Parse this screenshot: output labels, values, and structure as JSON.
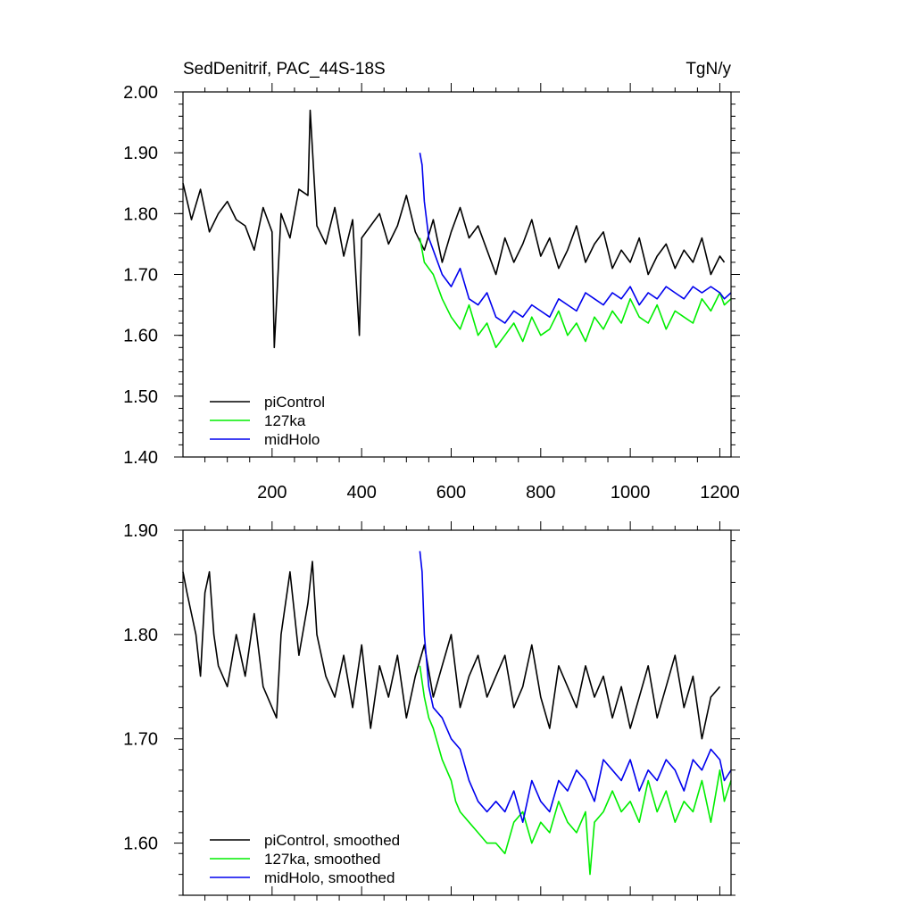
{
  "chart_data": [
    {
      "type": "line",
      "title": "SedDenitrif, PAC_44S-18S",
      "units": "TgN/y",
      "xlabel": "",
      "ylabel": "",
      "xlim": [
        1,
        1225
      ],
      "ylim": [
        1.4,
        2.0
      ],
      "xticks": [
        200,
        400,
        600,
        800,
        1000,
        1200
      ],
      "xtick_labels": [
        "200",
        "400",
        "600",
        "800",
        "1000",
        "1200"
      ],
      "yticks": [
        1.4,
        1.5,
        1.6,
        1.7,
        1.8,
        1.9,
        2.0
      ],
      "ytick_labels": [
        "1.40",
        "1.50",
        "1.60",
        "1.70",
        "1.80",
        "1.90",
        "2.00"
      ],
      "legend_position": "bottom-left",
      "series": [
        {
          "name": "piControl",
          "color": "#000000",
          "x": [
            1,
            20,
            40,
            60,
            80,
            100,
            120,
            140,
            160,
            180,
            200,
            205,
            220,
            240,
            260,
            280,
            285,
            300,
            320,
            340,
            360,
            380,
            395,
            400,
            420,
            440,
            460,
            480,
            500,
            520,
            540,
            560,
            580,
            600,
            620,
            640,
            660,
            680,
            700,
            720,
            740,
            760,
            780,
            800,
            820,
            840,
            860,
            880,
            900,
            920,
            940,
            960,
            980,
            1000,
            1020,
            1040,
            1060,
            1080,
            1100,
            1120,
            1140,
            1160,
            1180,
            1200,
            1210
          ],
          "values": [
            1.85,
            1.79,
            1.84,
            1.77,
            1.8,
            1.82,
            1.79,
            1.78,
            1.74,
            1.81,
            1.77,
            1.58,
            1.8,
            1.76,
            1.84,
            1.83,
            1.97,
            1.78,
            1.75,
            1.81,
            1.73,
            1.79,
            1.6,
            1.76,
            1.78,
            1.8,
            1.75,
            1.78,
            1.83,
            1.77,
            1.74,
            1.79,
            1.72,
            1.77,
            1.81,
            1.76,
            1.78,
            1.74,
            1.7,
            1.76,
            1.72,
            1.75,
            1.79,
            1.73,
            1.76,
            1.71,
            1.74,
            1.78,
            1.72,
            1.75,
            1.77,
            1.71,
            1.74,
            1.72,
            1.76,
            1.7,
            1.73,
            1.75,
            1.71,
            1.74,
            1.72,
            1.76,
            1.7,
            1.73,
            1.72
          ]
        },
        {
          "name": "127ka",
          "color": "#00ee00",
          "x": [
            530,
            540,
            560,
            580,
            600,
            620,
            640,
            660,
            680,
            700,
            720,
            740,
            760,
            780,
            800,
            820,
            840,
            860,
            880,
            900,
            920,
            940,
            960,
            980,
            1000,
            1020,
            1040,
            1060,
            1080,
            1100,
            1120,
            1140,
            1160,
            1180,
            1200,
            1210,
            1225
          ],
          "values": [
            1.76,
            1.72,
            1.7,
            1.66,
            1.63,
            1.61,
            1.65,
            1.6,
            1.62,
            1.58,
            1.6,
            1.62,
            1.59,
            1.63,
            1.6,
            1.61,
            1.64,
            1.6,
            1.62,
            1.59,
            1.63,
            1.61,
            1.64,
            1.62,
            1.66,
            1.63,
            1.62,
            1.65,
            1.61,
            1.64,
            1.63,
            1.62,
            1.66,
            1.64,
            1.67,
            1.65,
            1.66
          ]
        },
        {
          "name": "midHolo",
          "color": "#0000ee",
          "x": [
            530,
            535,
            540,
            550,
            560,
            580,
            600,
            620,
            640,
            660,
            680,
            700,
            720,
            740,
            760,
            780,
            800,
            820,
            840,
            860,
            880,
            900,
            920,
            940,
            960,
            980,
            1000,
            1020,
            1040,
            1060,
            1080,
            1100,
            1120,
            1140,
            1160,
            1180,
            1200,
            1210,
            1225
          ],
          "values": [
            1.9,
            1.88,
            1.82,
            1.76,
            1.74,
            1.7,
            1.68,
            1.71,
            1.66,
            1.65,
            1.67,
            1.63,
            1.62,
            1.64,
            1.63,
            1.65,
            1.64,
            1.63,
            1.66,
            1.65,
            1.64,
            1.67,
            1.66,
            1.65,
            1.67,
            1.66,
            1.68,
            1.65,
            1.67,
            1.66,
            1.68,
            1.67,
            1.66,
            1.68,
            1.67,
            1.68,
            1.67,
            1.66,
            1.67
          ]
        }
      ]
    },
    {
      "type": "line",
      "title": "",
      "xlabel": "",
      "ylabel": "",
      "xlim": [
        1,
        1225
      ],
      "ylim": [
        1.55,
        1.9
      ],
      "xticks": [
        200,
        400,
        600,
        800,
        1000,
        1200
      ],
      "xtick_labels": [],
      "yticks": [
        1.6,
        1.7,
        1.8,
        1.9
      ],
      "ytick_labels": [
        "1.60",
        "1.70",
        "1.80",
        "1.90"
      ],
      "legend_position": "bottom-left",
      "series": [
        {
          "name": "piControl, smoothed",
          "color": "#000000",
          "x": [
            1,
            10,
            20,
            30,
            40,
            50,
            60,
            70,
            80,
            100,
            120,
            140,
            160,
            180,
            200,
            210,
            220,
            240,
            260,
            280,
            290,
            300,
            320,
            340,
            360,
            380,
            400,
            420,
            440,
            460,
            480,
            500,
            520,
            540,
            560,
            580,
            600,
            620,
            640,
            660,
            680,
            700,
            720,
            740,
            760,
            780,
            800,
            820,
            840,
            860,
            880,
            900,
            920,
            940,
            960,
            980,
            1000,
            1020,
            1040,
            1060,
            1080,
            1100,
            1120,
            1140,
            1160,
            1180,
            1200
          ],
          "values": [
            1.86,
            1.84,
            1.82,
            1.8,
            1.76,
            1.84,
            1.86,
            1.8,
            1.77,
            1.75,
            1.8,
            1.76,
            1.82,
            1.75,
            1.73,
            1.72,
            1.8,
            1.86,
            1.78,
            1.83,
            1.87,
            1.8,
            1.76,
            1.74,
            1.78,
            1.73,
            1.79,
            1.71,
            1.77,
            1.74,
            1.78,
            1.72,
            1.76,
            1.79,
            1.74,
            1.77,
            1.8,
            1.73,
            1.76,
            1.78,
            1.74,
            1.76,
            1.78,
            1.73,
            1.75,
            1.79,
            1.74,
            1.71,
            1.77,
            1.75,
            1.73,
            1.77,
            1.74,
            1.76,
            1.72,
            1.75,
            1.71,
            1.74,
            1.77,
            1.72,
            1.75,
            1.78,
            1.73,
            1.76,
            1.7,
            1.74,
            1.75
          ]
        },
        {
          "name": "127ka, smoothed",
          "color": "#00ee00",
          "x": [
            530,
            540,
            550,
            560,
            580,
            600,
            610,
            620,
            640,
            660,
            680,
            700,
            720,
            740,
            760,
            780,
            800,
            820,
            840,
            860,
            880,
            900,
            910,
            920,
            940,
            960,
            980,
            1000,
            1020,
            1040,
            1060,
            1080,
            1100,
            1120,
            1140,
            1160,
            1180,
            1200,
            1210,
            1225
          ],
          "values": [
            1.77,
            1.74,
            1.72,
            1.71,
            1.68,
            1.66,
            1.64,
            1.63,
            1.62,
            1.61,
            1.6,
            1.6,
            1.59,
            1.62,
            1.63,
            1.6,
            1.62,
            1.61,
            1.64,
            1.62,
            1.61,
            1.63,
            1.57,
            1.62,
            1.63,
            1.65,
            1.63,
            1.64,
            1.62,
            1.66,
            1.63,
            1.65,
            1.62,
            1.64,
            1.63,
            1.66,
            1.62,
            1.67,
            1.64,
            1.66
          ]
        },
        {
          "name": "midHolo, smoothed",
          "color": "#0000ee",
          "x": [
            530,
            535,
            540,
            550,
            560,
            580,
            600,
            620,
            640,
            660,
            680,
            700,
            720,
            740,
            760,
            780,
            800,
            820,
            840,
            860,
            880,
            900,
            920,
            940,
            960,
            980,
            1000,
            1020,
            1040,
            1060,
            1080,
            1100,
            1120,
            1140,
            1160,
            1180,
            1200,
            1210,
            1225
          ],
          "values": [
            1.88,
            1.86,
            1.8,
            1.75,
            1.73,
            1.72,
            1.7,
            1.69,
            1.66,
            1.64,
            1.63,
            1.64,
            1.63,
            1.65,
            1.62,
            1.66,
            1.64,
            1.63,
            1.66,
            1.65,
            1.67,
            1.66,
            1.64,
            1.68,
            1.67,
            1.66,
            1.68,
            1.65,
            1.67,
            1.66,
            1.68,
            1.67,
            1.65,
            1.68,
            1.67,
            1.69,
            1.68,
            1.66,
            1.67
          ]
        }
      ]
    }
  ]
}
